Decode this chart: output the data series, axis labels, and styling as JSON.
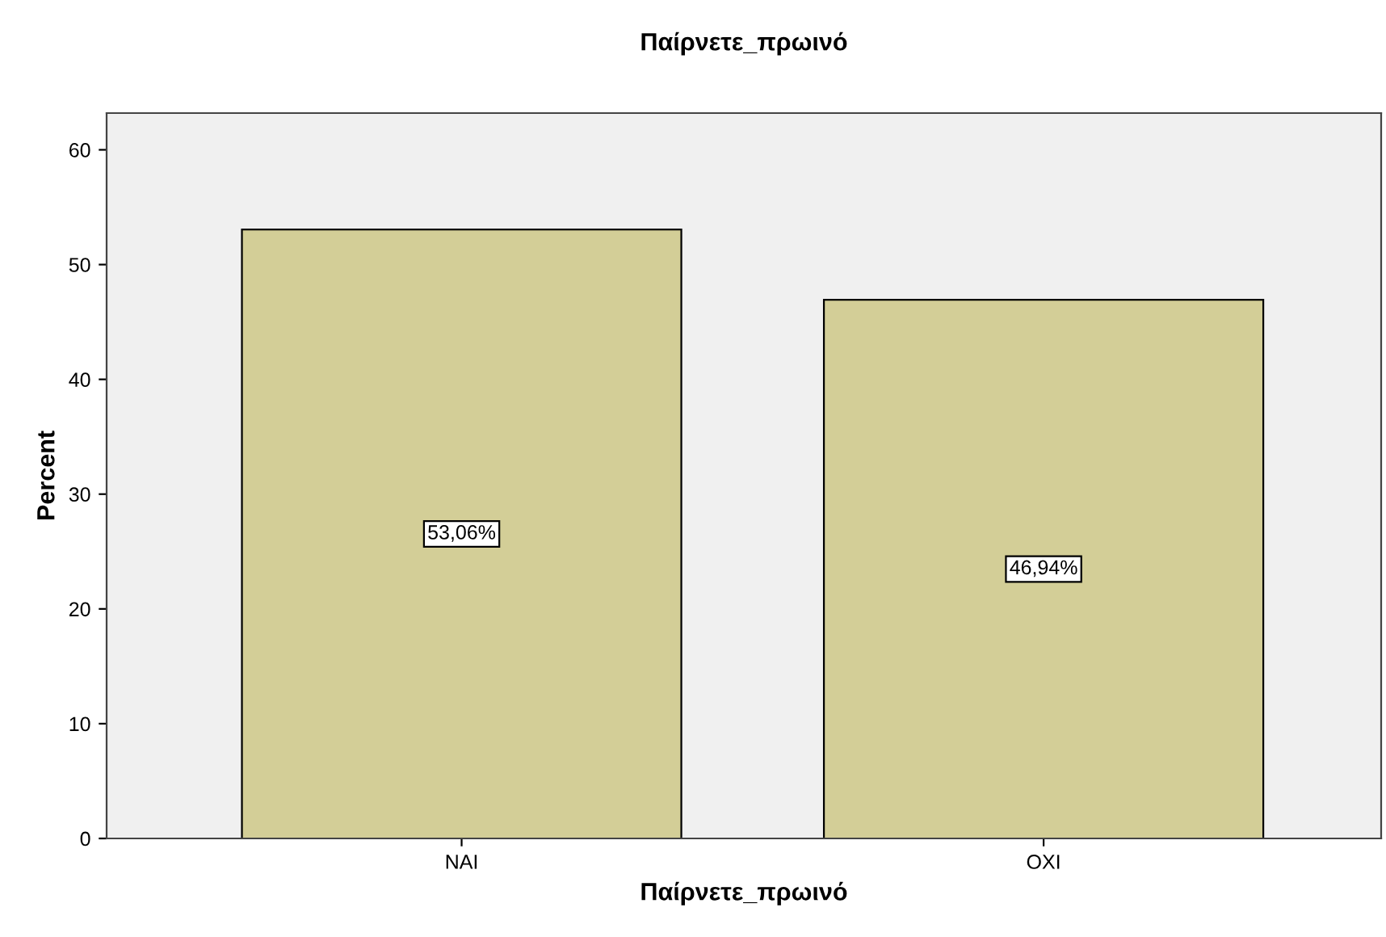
{
  "chart_data": {
    "type": "bar",
    "title": "Παίρνετε_πρωινό",
    "xlabel": "Παίρνετε_πρωινό",
    "ylabel": "Percent",
    "categories": [
      "NAI",
      "OXI"
    ],
    "series": [
      {
        "color": "#d3ce97",
        "values": [
          53.06,
          46.94
        ],
        "value_labels": [
          "53,06%",
          "46,94%"
        ]
      }
    ],
    "ylim": [
      0,
      63.2
    ],
    "yticks": [
      0,
      10,
      20,
      30,
      40,
      50,
      60
    ],
    "grid": false
  }
}
